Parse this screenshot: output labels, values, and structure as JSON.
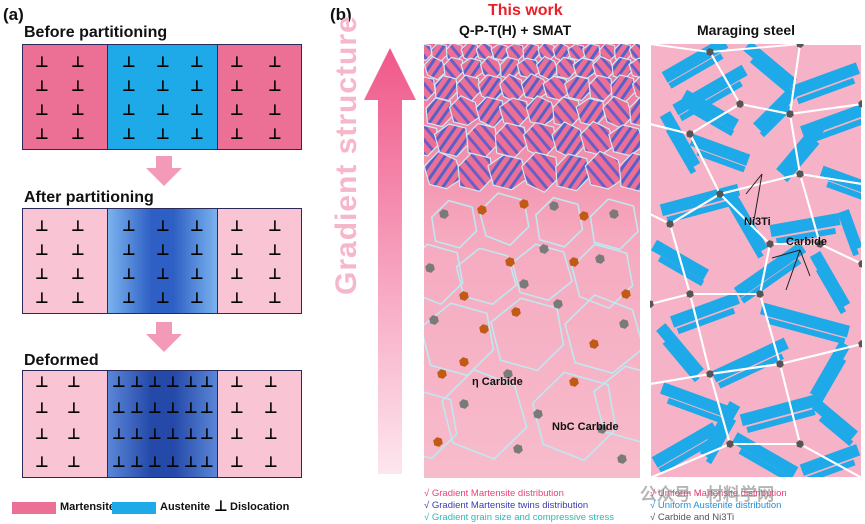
{
  "panel_a": {
    "label": "(a)",
    "stages": [
      {
        "title": "Before partitioning"
      },
      {
        "title": "After partitioning"
      },
      {
        "title": "Deformed"
      }
    ],
    "legend": [
      {
        "label": "Martensite",
        "color": "#ec6f96"
      },
      {
        "label": "Austenite",
        "color": "#1ea9e8"
      },
      {
        "label": "Dislocation",
        "symbol": "⊥"
      }
    ]
  },
  "panel_b": {
    "label": "(b)",
    "this_work": "This work",
    "left_title": "Q-P-T(H) + SMAT",
    "right_title": "Maraging steel",
    "gradient_label": "Gradient structure",
    "annotations": {
      "eta_carbide": "η Carbide",
      "nbc_carbide": "NbC Carbide",
      "ni3ti": "Ni3Ti",
      "carbide": "Carbide"
    },
    "left_bullets": [
      {
        "text": "√ Gradient Martensite distribution",
        "color": "#e8407a"
      },
      {
        "text": "√ Gradient Martensite twins distribution",
        "color": "#3b3bb0"
      },
      {
        "text": "√ Gradient grain size and compressive stress",
        "color": "#2bb8b8"
      }
    ],
    "right_bullets": [
      {
        "text": "√ Uniform Martensite distribution",
        "color": "#e8407a"
      },
      {
        "text": "√ Uniform Austenite distribution",
        "color": "#1e90e0"
      },
      {
        "text": "√ Carbide and Ni3Ti",
        "color": "#555555"
      }
    ],
    "watermark": "公众号 · 材料学网"
  }
}
